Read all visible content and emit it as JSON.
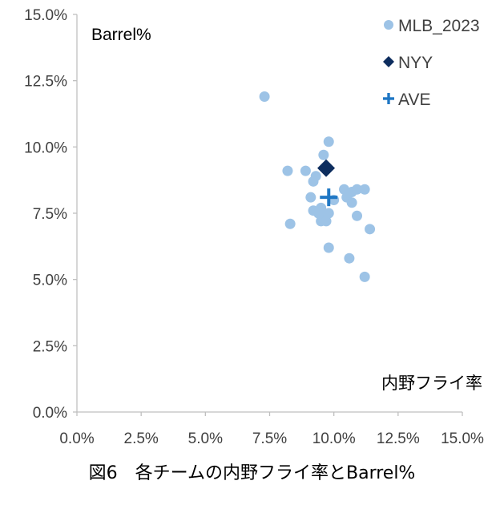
{
  "chart_data": {
    "type": "scatter",
    "title": "",
    "xlabel": "内野フライ率",
    "ylabel": "Barrel%",
    "xlim": [
      0,
      15
    ],
    "ylim": [
      0,
      15
    ],
    "x_ticks": [
      "0.0%",
      "2.5%",
      "5.0%",
      "7.5%",
      "10.0%",
      "12.5%",
      "15.0%"
    ],
    "y_ticks": [
      "0.0%",
      "2.5%",
      "5.0%",
      "7.5%",
      "10.0%",
      "12.5%",
      "15.0%"
    ],
    "tick_values": [
      0,
      2.5,
      5,
      7.5,
      10,
      12.5,
      15
    ],
    "grid": false,
    "legend_position": "top-right",
    "series": [
      {
        "name": "MLB_2023",
        "marker": "circle",
        "color": "#9DC3E6",
        "points": [
          {
            "x": 7.3,
            "y": 11.9
          },
          {
            "x": 9.8,
            "y": 10.2
          },
          {
            "x": 9.6,
            "y": 9.7
          },
          {
            "x": 8.2,
            "y": 9.1
          },
          {
            "x": 8.9,
            "y": 9.1
          },
          {
            "x": 9.3,
            "y": 8.9
          },
          {
            "x": 9.2,
            "y": 8.7
          },
          {
            "x": 10.4,
            "y": 8.4
          },
          {
            "x": 10.7,
            "y": 8.3
          },
          {
            "x": 10.9,
            "y": 8.4
          },
          {
            "x": 11.2,
            "y": 8.4
          },
          {
            "x": 10.5,
            "y": 8.1
          },
          {
            "x": 9.1,
            "y": 8.1
          },
          {
            "x": 10.0,
            "y": 8.0
          },
          {
            "x": 10.7,
            "y": 7.9
          },
          {
            "x": 9.2,
            "y": 7.6
          },
          {
            "x": 9.5,
            "y": 7.7
          },
          {
            "x": 9.6,
            "y": 7.5
          },
          {
            "x": 9.4,
            "y": 7.5
          },
          {
            "x": 9.8,
            "y": 7.5
          },
          {
            "x": 9.5,
            "y": 7.2
          },
          {
            "x": 9.7,
            "y": 7.2
          },
          {
            "x": 10.9,
            "y": 7.4
          },
          {
            "x": 8.3,
            "y": 7.1
          },
          {
            "x": 11.4,
            "y": 6.9
          },
          {
            "x": 9.8,
            "y": 6.2
          },
          {
            "x": 10.6,
            "y": 5.8
          },
          {
            "x": 11.2,
            "y": 5.1
          }
        ]
      },
      {
        "name": "NYY",
        "marker": "diamond",
        "color": "#0D2D5E",
        "points": [
          {
            "x": 9.7,
            "y": 9.2
          }
        ]
      },
      {
        "name": "AVE",
        "marker": "plus",
        "color": "#1F77C4",
        "points": [
          {
            "x": 9.8,
            "y": 8.1
          }
        ]
      }
    ]
  },
  "caption": "図6　各チームの内野フライ率とBarrel%"
}
